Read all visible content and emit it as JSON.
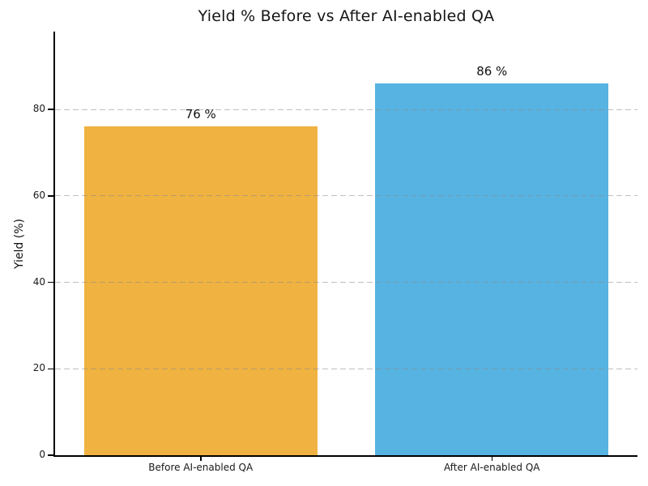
{
  "figure": {
    "background": "#ffffff"
  },
  "chart_data": {
    "type": "bar",
    "title": "Yield % Before vs After AI-enabled QA",
    "categories": [
      "Before AI-enabled QA",
      "After AI-enabled QA"
    ],
    "values": [
      76,
      86
    ],
    "value_labels": [
      "76 %",
      "86 %"
    ],
    "bar_colors": [
      "#F0B240",
      "#57B3E1"
    ],
    "xlabel": "",
    "ylabel": "Yield (%)",
    "ylim": [
      0,
      98
    ],
    "yticks": [
      0,
      20,
      40,
      60,
      80
    ],
    "grid": {
      "axis": "y",
      "style": "dashed",
      "color": "#c8c8c8",
      "above_bars": true
    },
    "legend": "none",
    "spines": [
      "left",
      "bottom"
    ]
  },
  "colors": {
    "title": "#151515",
    "axis": "#000000",
    "tick_label": "#1a1a1a"
  }
}
